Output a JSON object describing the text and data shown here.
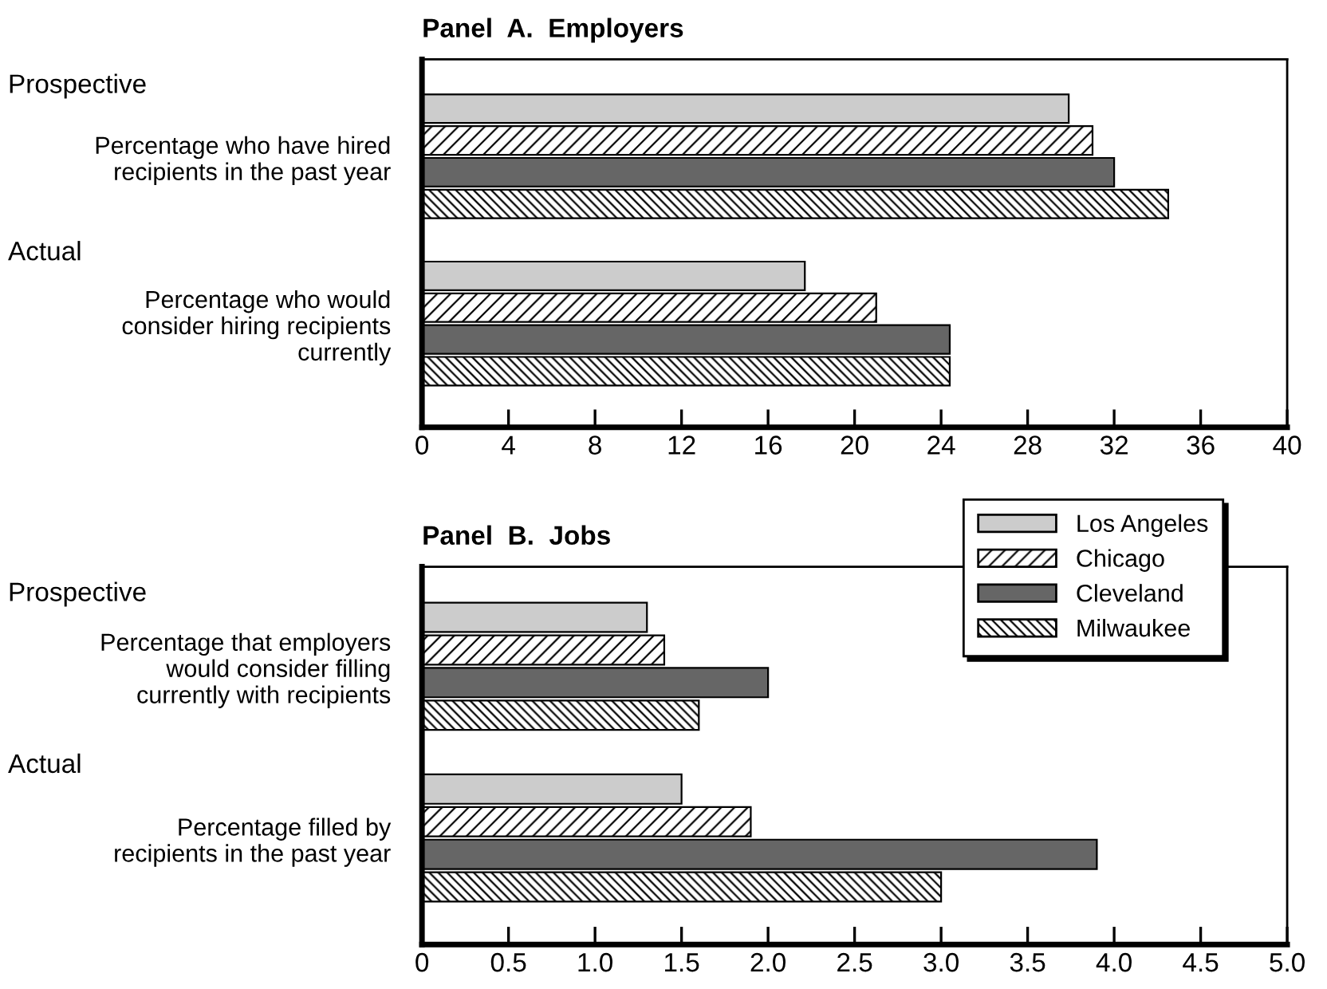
{
  "chart_data": [
    {
      "type": "bar",
      "orientation": "horizontal",
      "title": "Panel  A.  Employers",
      "categories": [
        "Percentage who have hired\nrecipients in the past year",
        "Percentage who would\nconsider hiring recipients\ncurrently"
      ],
      "annotations": [
        "Prospective",
        "Actual"
      ],
      "series": [
        {
          "color": "#cccccc",
          "values": [
            29.9,
            17.7
          ]
        },
        {
          "color": "#000000",
          "values": [
            31.0,
            21.0
          ]
        },
        {
          "color": "#666666",
          "values": [
            32.0,
            24.4
          ]
        },
        {
          "color": "#000000",
          "values": [
            34.5,
            24.4
          ]
        }
      ],
      "xlim": [
        0,
        40
      ],
      "xticks": [
        0,
        4,
        8,
        12,
        16,
        20,
        24,
        28,
        32,
        36,
        40
      ],
      "grid": false
    },
    {
      "type": "bar",
      "orientation": "horizontal",
      "title": "Panel  B.  Jobs",
      "categories": [
        "Percentage that employers\nwould consider filling\ncurrently with recipients",
        "Percentage filled by\nrecipients in the past year"
      ],
      "annotations": [
        "Prospective",
        "Actual"
      ],
      "series": [
        {
          "name": "Los Angeles",
          "color": "#cccccc",
          "values": [
            1.3,
            1.5
          ]
        },
        {
          "name": "Chicago",
          "color": "#000000",
          "values": [
            1.4,
            1.9
          ]
        },
        {
          "name": "Cleveland",
          "color": "#666666",
          "values": [
            2.0,
            3.9
          ]
        },
        {
          "name": "Milwaukee",
          "color": "#000000",
          "values": [
            1.6,
            3.0
          ]
        }
      ],
      "xlim": [
        0,
        5.0
      ],
      "xticks": [
        0,
        {
          "value": 0.5,
          "label": "0.5"
        },
        {
          "value": 1.0,
          "label": "1.0"
        },
        {
          "value": 1.5,
          "label": "1.5"
        },
        {
          "value": 2.0,
          "label": "2.0"
        },
        {
          "value": 2.5,
          "label": "2.5"
        },
        {
          "value": 3.0,
          "label": "3.0"
        },
        {
          "value": 3.5,
          "label": "3.5"
        },
        {
          "value": 4.0,
          "label": "4.0"
        },
        {
          "value": 4.5,
          "label": "4.5"
        },
        {
          "value": 5.0,
          "label": "5.0"
        }
      ],
      "grid": false,
      "legend": "top right"
    }
  ]
}
